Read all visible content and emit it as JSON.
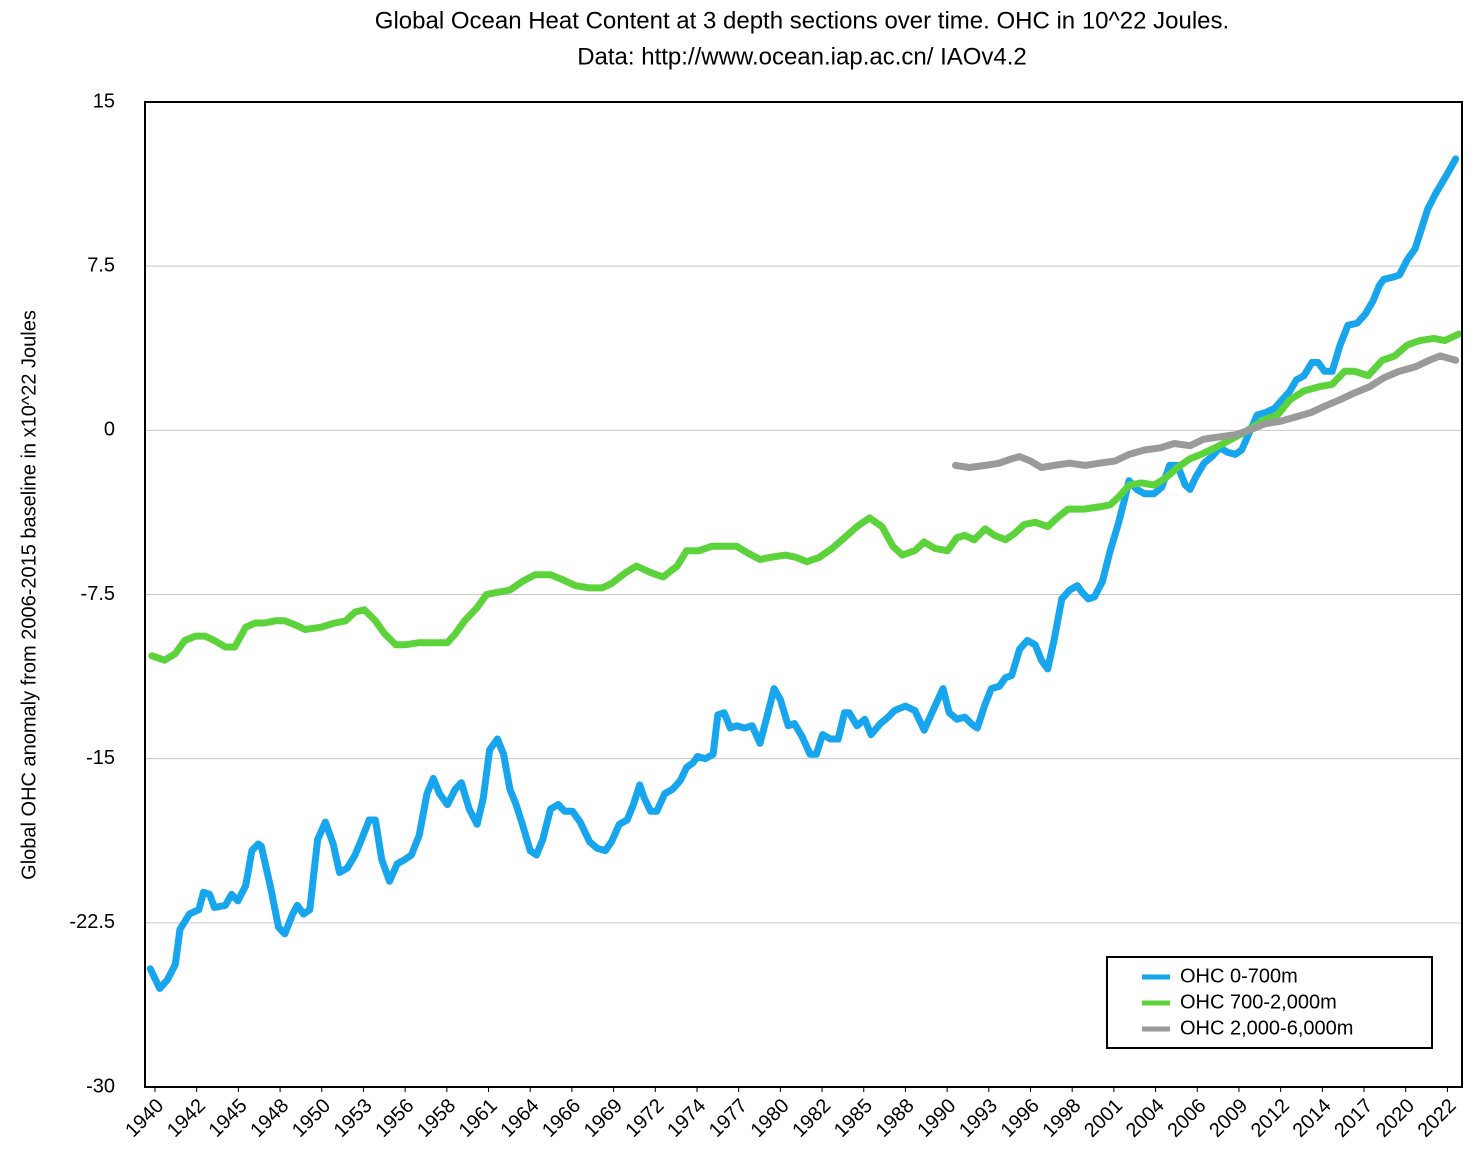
{
  "chart_data": {
    "type": "line",
    "title": "Global Ocean Heat Content at 3 depth sections over time. OHC in 10^22 Joules.",
    "subtitle": "Data: http://www.ocean.iap.ac.cn/ IAOv4.2",
    "y_label": "Global OHC anomaly from 2006-2015 baseline in x10^22 Joules",
    "xlim": [
      1939.36,
      2023.6
    ],
    "xticks": [
      1940,
      {
        "value": 1942.667,
        "label": "1942"
      },
      {
        "value": 1945.333,
        "label": "1945"
      },
      1948,
      {
        "value": 1950.667,
        "label": "1950"
      },
      {
        "value": 1953.333,
        "label": "1953"
      },
      1956,
      {
        "value": 1958.667,
        "label": "1958"
      },
      {
        "value": 1961.333,
        "label": "1961"
      },
      1964,
      {
        "value": 1966.667,
        "label": "1966"
      },
      {
        "value": 1969.333,
        "label": "1969"
      },
      1972,
      {
        "value": 1974.667,
        "label": "1974"
      },
      {
        "value": 1977.333,
        "label": "1977"
      },
      1980,
      {
        "value": 1982.667,
        "label": "1982"
      },
      {
        "value": 1985.333,
        "label": "1985"
      },
      1988,
      {
        "value": 1990.667,
        "label": "1990"
      },
      {
        "value": 1993.333,
        "label": "1993"
      },
      1996,
      {
        "value": 1998.667,
        "label": "1998"
      },
      {
        "value": 2001.333,
        "label": "2001"
      },
      2004,
      {
        "value": 2006.667,
        "label": "2006"
      },
      {
        "value": 2009.333,
        "label": "2009"
      },
      2012,
      {
        "value": 2014.667,
        "label": "2014"
      },
      {
        "value": 2017.333,
        "label": "2017"
      },
      2020,
      {
        "value": 2022.667,
        "label": "2022"
      }
    ],
    "ylim": [
      -30,
      15
    ],
    "yticks": [
      -30,
      -22.5,
      -15,
      -7.5,
      0,
      7.5,
      15
    ],
    "grid": true,
    "legend": "lower right",
    "series": [
      {
        "name": "OHC 0-700m",
        "color": "#17a5ee",
        "x": [
          1939.7,
          1940.3,
          1940.8,
          1941.3,
          1941.6,
          1942.2,
          1942.8,
          1943.1,
          1943.5,
          1943.8,
          1944.5,
          1944.9,
          1945.3,
          1945.8,
          1946.2,
          1946.6,
          1946.8,
          1947.4,
          1947.9,
          1948.3,
          1948.8,
          1949.1,
          1949.5,
          1949.9,
          1950.4,
          1950.9,
          1951.4,
          1951.8,
          1952.3,
          1952.8,
          1953.2,
          1953.7,
          1954.1,
          1954.5,
          1955.0,
          1955.5,
          1956.0,
          1956.4,
          1956.9,
          1957.4,
          1957.8,
          1958.2,
          1958.7,
          1959.2,
          1959.6,
          1960.1,
          1960.6,
          1961.0,
          1961.4,
          1961.9,
          1962.3,
          1962.7,
          1963.1,
          1963.5,
          1964.0,
          1964.4,
          1964.8,
          1965.3,
          1965.8,
          1966.2,
          1966.7,
          1967.2,
          1967.8,
          1968.3,
          1968.8,
          1969.2,
          1969.7,
          1970.2,
          1970.6,
          1971.0,
          1971.3,
          1971.7,
          1972.1,
          1972.6,
          1973.1,
          1973.6,
          1974.0,
          1974.4,
          1974.7,
          1975.2,
          1975.7,
          1976.0,
          1976.4,
          1976.8,
          1977.2,
          1977.7,
          1978.2,
          1978.7,
          1979.1,
          1979.6,
          1980.0,
          1980.5,
          1980.9,
          1981.4,
          1981.9,
          1982.3,
          1982.7,
          1983.2,
          1983.7,
          1984.1,
          1984.4,
          1984.9,
          1985.4,
          1985.8,
          1986.4,
          1986.9,
          1987.3,
          1988.0,
          1988.6,
          1989.2,
          1989.7,
          1990.4,
          1990.8,
          1991.3,
          1991.8,
          1992.2,
          1992.6,
          1993.1,
          1993.5,
          1994.0,
          1994.4,
          1994.8,
          1995.3,
          1995.8,
          1996.3,
          1996.7,
          1997.1,
          1997.5,
          1998.0,
          1998.5,
          1999.0,
          1999.3,
          1999.7,
          2000.1,
          2000.6,
          2001.1,
          2001.6,
          2002.0,
          2002.3,
          2002.8,
          2003.3,
          2003.9,
          2004.4,
          2004.9,
          2005.4,
          2005.9,
          2006.2,
          2006.6,
          2007.1,
          2007.6,
          2008.1,
          2008.6,
          2009.1,
          2009.5,
          2010.0,
          2010.5,
          2011.0,
          2011.6,
          2012.1,
          2012.6,
          2013.0,
          2013.5,
          2014.0,
          2014.4,
          2014.8,
          2015.3,
          2015.8,
          2016.3,
          2016.9,
          2017.4,
          2017.9,
          2018.3,
          2018.6,
          2019.2,
          2019.6,
          2020.1,
          2020.6,
          2021.0,
          2021.4,
          2021.9,
          2022.4,
          2022.8,
          2023.2
        ],
        "values": [
          -24.6,
          -25.5,
          -25.1,
          -24.4,
          -22.8,
          -22.1,
          -21.9,
          -21.1,
          -21.2,
          -21.8,
          -21.7,
          -21.2,
          -21.5,
          -20.8,
          -19.2,
          -18.9,
          -19.0,
          -20.9,
          -22.7,
          -23.0,
          -22.1,
          -21.7,
          -22.1,
          -21.9,
          -18.7,
          -17.9,
          -18.9,
          -20.2,
          -20.0,
          -19.4,
          -18.7,
          -17.8,
          -17.8,
          -19.6,
          -20.6,
          -19.8,
          -19.6,
          -19.4,
          -18.5,
          -16.6,
          -15.9,
          -16.6,
          -17.1,
          -16.4,
          -16.1,
          -17.3,
          -18.0,
          -16.8,
          -14.6,
          -14.1,
          -14.8,
          -16.4,
          -17.1,
          -18.0,
          -19.2,
          -19.4,
          -18.7,
          -17.3,
          -17.1,
          -17.4,
          -17.4,
          -17.9,
          -18.8,
          -19.1,
          -19.2,
          -18.8,
          -18.0,
          -17.8,
          -17.1,
          -16.2,
          -16.8,
          -17.4,
          -17.4,
          -16.6,
          -16.4,
          -16.0,
          -15.4,
          -15.2,
          -14.9,
          -15.0,
          -14.8,
          -13.0,
          -12.9,
          -13.6,
          -13.5,
          -13.6,
          -13.5,
          -14.3,
          -13.2,
          -11.8,
          -12.3,
          -13.5,
          -13.4,
          -14.0,
          -14.8,
          -14.8,
          -13.9,
          -14.1,
          -14.1,
          -12.9,
          -12.9,
          -13.5,
          -13.2,
          -13.9,
          -13.4,
          -13.1,
          -12.8,
          -12.6,
          -12.8,
          -13.7,
          -12.9,
          -11.8,
          -12.9,
          -13.2,
          -13.1,
          -13.4,
          -13.6,
          -12.5,
          -11.8,
          -11.7,
          -11.3,
          -11.2,
          -10.0,
          -9.6,
          -9.8,
          -10.5,
          -10.9,
          -9.6,
          -7.7,
          -7.3,
          -7.1,
          -7.4,
          -7.7,
          -7.6,
          -6.9,
          -5.5,
          -4.3,
          -3.2,
          -2.3,
          -2.7,
          -2.9,
          -2.9,
          -2.6,
          -1.6,
          -1.6,
          -2.5,
          -2.7,
          -2.1,
          -1.5,
          -1.2,
          -0.8,
          -1.0,
          -1.1,
          -0.9,
          -0.1,
          0.7,
          0.8,
          1.0,
          1.4,
          1.8,
          2.3,
          2.5,
          3.1,
          3.1,
          2.7,
          2.7,
          3.9,
          4.8,
          4.9,
          5.3,
          5.9,
          6.6,
          6.9,
          7.0,
          7.1,
          7.8,
          8.3,
          9.2,
          10.1,
          10.8,
          11.4,
          11.9,
          12.4
        ]
      },
      {
        "name": "OHC 700-2,000m",
        "color": "#5cd33b",
        "x": [
          1939.8,
          1940.6,
          1941.3,
          1941.9,
          1942.6,
          1943.2,
          1943.8,
          1944.5,
          1945.1,
          1945.8,
          1946.4,
          1947.0,
          1947.7,
          1948.3,
          1949.0,
          1949.6,
          1950.6,
          1951.5,
          1952.2,
          1952.8,
          1953.4,
          1954.1,
          1954.7,
          1955.4,
          1956.0,
          1956.9,
          1957.9,
          1958.7,
          1959.2,
          1959.8,
          1960.6,
          1961.2,
          1961.9,
          1962.7,
          1963.5,
          1964.3,
          1965.3,
          1966.0,
          1966.9,
          1967.8,
          1968.6,
          1969.2,
          1970.1,
          1970.8,
          1971.7,
          1972.5,
          1973.4,
          1974.0,
          1974.8,
          1975.6,
          1976.4,
          1977.2,
          1977.9,
          1978.7,
          1979.4,
          1980.3,
          1981.0,
          1981.7,
          1982.5,
          1983.3,
          1984.1,
          1984.9,
          1985.7,
          1986.5,
          1987.2,
          1987.8,
          1988.6,
          1989.2,
          1989.9,
          1990.7,
          1991.3,
          1991.8,
          1992.4,
          1993.1,
          1993.7,
          1994.4,
          1995.0,
          1995.6,
          1996.3,
          1997.1,
          1997.7,
          1998.4,
          1999.4,
          2000.4,
          2001.1,
          2001.7,
          2002.3,
          2003.1,
          2003.9,
          2004.6,
          2005.4,
          2006.2,
          2006.9,
          2007.8,
          2008.6,
          2009.4,
          2010.1,
          2011.0,
          2011.8,
          2012.6,
          2013.5,
          2014.5,
          2015.3,
          2016.1,
          2016.7,
          2017.6,
          2018.5,
          2019.3,
          2020.1,
          2020.9,
          2021.8,
          2022.5,
          2023.4
        ],
        "values": [
          -10.3,
          -10.5,
          -10.2,
          -9.6,
          -9.4,
          -9.4,
          -9.6,
          -9.9,
          -9.9,
          -9.0,
          -8.8,
          -8.8,
          -8.7,
          -8.7,
          -8.9,
          -9.1,
          -9.0,
          -8.8,
          -8.7,
          -8.3,
          -8.2,
          -8.7,
          -9.3,
          -9.8,
          -9.8,
          -9.7,
          -9.7,
          -9.7,
          -9.3,
          -8.7,
          -8.1,
          -7.5,
          -7.4,
          -7.3,
          -6.9,
          -6.6,
          -6.6,
          -6.8,
          -7.1,
          -7.2,
          -7.2,
          -7.0,
          -6.5,
          -6.2,
          -6.5,
          -6.7,
          -6.2,
          -5.5,
          -5.5,
          -5.3,
          -5.3,
          -5.3,
          -5.6,
          -5.9,
          -5.8,
          -5.7,
          -5.8,
          -6.0,
          -5.8,
          -5.4,
          -4.9,
          -4.4,
          -4.0,
          -4.4,
          -5.3,
          -5.7,
          -5.5,
          -5.1,
          -5.4,
          -5.5,
          -4.9,
          -4.8,
          -5.0,
          -4.5,
          -4.8,
          -5.0,
          -4.7,
          -4.3,
          -4.2,
          -4.4,
          -4.0,
          -3.6,
          -3.6,
          -3.5,
          -3.4,
          -3.0,
          -2.5,
          -2.4,
          -2.5,
          -2.2,
          -1.7,
          -1.3,
          -1.1,
          -0.8,
          -0.5,
          -0.2,
          0.1,
          0.5,
          0.7,
          1.4,
          1.8,
          2.0,
          2.1,
          2.7,
          2.7,
          2.5,
          3.2,
          3.4,
          3.9,
          4.1,
          4.2,
          4.1,
          4.4
        ]
      },
      {
        "name": "OHC 2,000-6,000m",
        "color": "#9a9a9a",
        "x": [
          1991.2,
          1992.1,
          1993.1,
          1994.0,
          1994.8,
          1995.3,
          1996.0,
          1996.7,
          1997.5,
          1998.5,
          1999.5,
          2000.4,
          2001.4,
          2002.3,
          2003.3,
          2004.3,
          2005.2,
          2006.2,
          2007.1,
          2008.1,
          2009.1,
          2010.0,
          2011.0,
          2011.9,
          2012.9,
          2013.9,
          2014.8,
          2015.8,
          2016.7,
          2017.7,
          2018.6,
          2019.6,
          2020.6,
          2021.5,
          2022.2,
          2023.2
        ],
        "values": [
          -1.6,
          -1.7,
          -1.6,
          -1.5,
          -1.3,
          -1.2,
          -1.4,
          -1.7,
          -1.6,
          -1.5,
          -1.6,
          -1.5,
          -1.4,
          -1.1,
          -0.9,
          -0.8,
          -0.6,
          -0.7,
          -0.4,
          -0.3,
          -0.2,
          0.0,
          0.3,
          0.4,
          0.6,
          0.8,
          1.1,
          1.4,
          1.7,
          2.0,
          2.4,
          2.7,
          2.9,
          3.2,
          3.4,
          3.2
        ]
      }
    ]
  }
}
